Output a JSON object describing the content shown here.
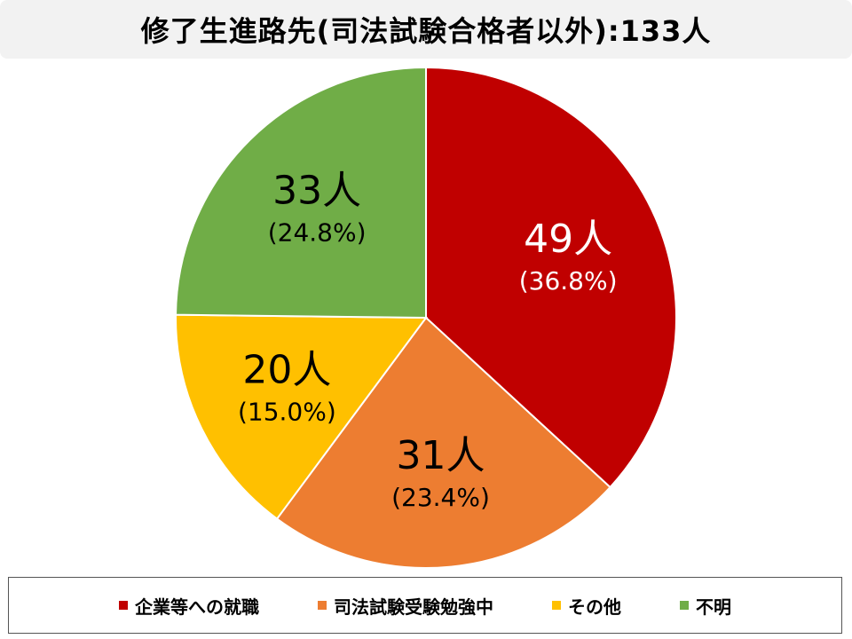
{
  "title": "修了生進路先(司法試験合格者以外):133人",
  "chart_data": {
    "type": "pie",
    "title": "修了生進路先(司法試験合格者以外):133人",
    "total": 133,
    "start": "12 o'clock",
    "direction": "clockwise",
    "legend_position": "bottom",
    "slices": [
      {
        "name": "企業等への就職",
        "value": 49,
        "label": "49人",
        "percent_label": "(36.8%)",
        "color": "#c00000",
        "label_color": "#ffffff"
      },
      {
        "name": "司法試験受験勉強中",
        "value": 31,
        "label": "31人",
        "percent_label": "(23.4%)",
        "color": "#ed7d31",
        "label_color": "#000000"
      },
      {
        "name": "その他",
        "value": 20,
        "label": "20人",
        "percent_label": "(15.0%)",
        "color": "#ffc000",
        "label_color": "#000000"
      },
      {
        "name": "不明",
        "value": 33,
        "label": "33人",
        "percent_label": "(24.8%)",
        "color": "#70ad47",
        "label_color": "#000000"
      }
    ]
  }
}
